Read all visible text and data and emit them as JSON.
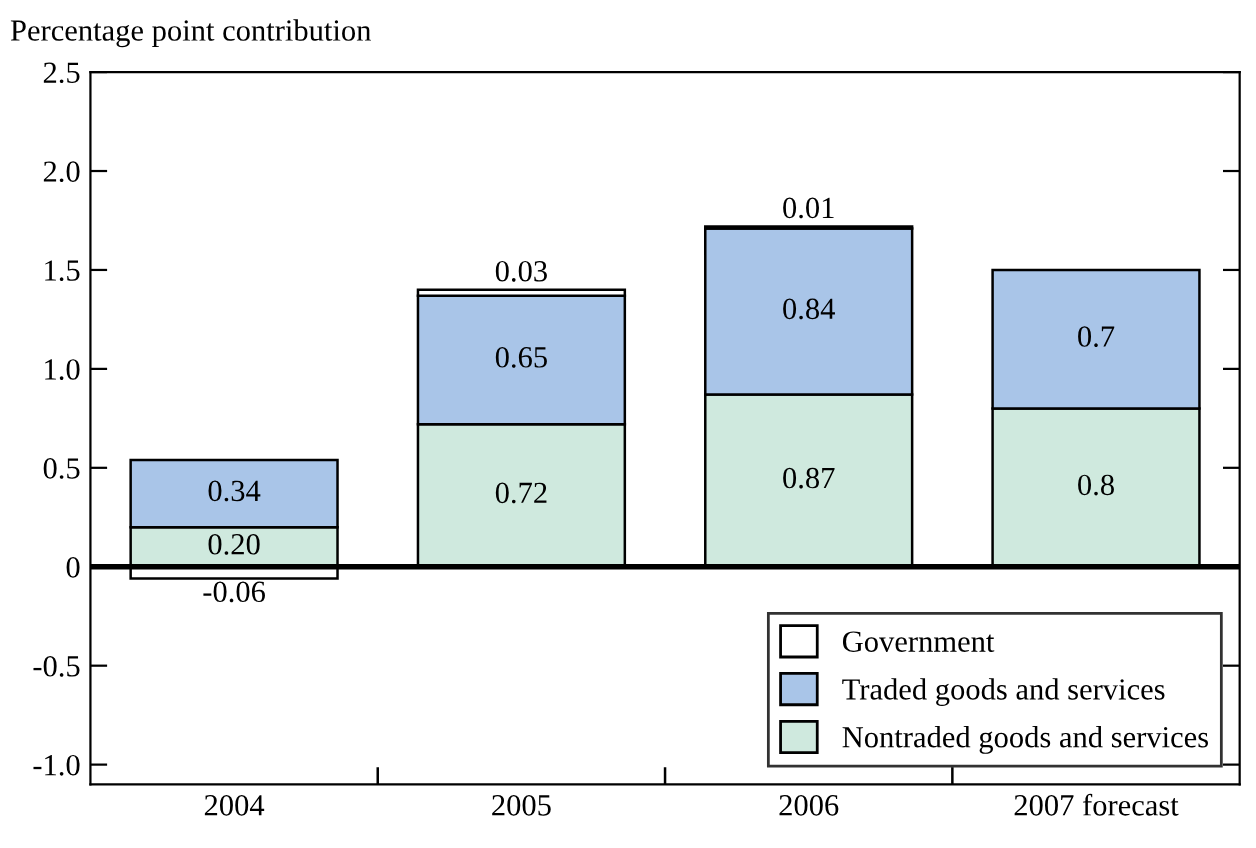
{
  "chart_data": {
    "type": "bar",
    "stacked": true,
    "ylabel": "Percentage point contribution",
    "categories": [
      "2004",
      "2005",
      "2006",
      "2007 forecast"
    ],
    "series": [
      {
        "name": "Nontraded goods and services",
        "color": "#cfe9de",
        "values": [
          0.2,
          0.72,
          0.87,
          0.8
        ],
        "value_labels": [
          "0.20",
          "0.72",
          "0.87",
          "0.8"
        ]
      },
      {
        "name": "Traded goods and services",
        "color": "#a9c5e8",
        "values": [
          0.34,
          0.65,
          0.84,
          0.7
        ],
        "value_labels": [
          "0.34",
          "0.65",
          "0.84",
          "0.7"
        ]
      },
      {
        "name": "Government",
        "color": "#ffffff",
        "values": [
          -0.06,
          0.03,
          0.01,
          null
        ],
        "value_labels": [
          "-0.06",
          "0.03",
          "0.01",
          null
        ]
      }
    ],
    "ylim": [
      -1.1,
      2.5
    ],
    "yticks": [
      {
        "value": -1,
        "label": "-1.0"
      },
      -0.5,
      0,
      0.5,
      {
        "value": 1,
        "label": "1.0"
      },
      1.5,
      {
        "value": 2,
        "label": "2.0"
      },
      2.5
    ],
    "ref_lines": [
      {
        "axis": "y",
        "value": 0
      }
    ],
    "grid": false,
    "legend": "bottom right"
  }
}
